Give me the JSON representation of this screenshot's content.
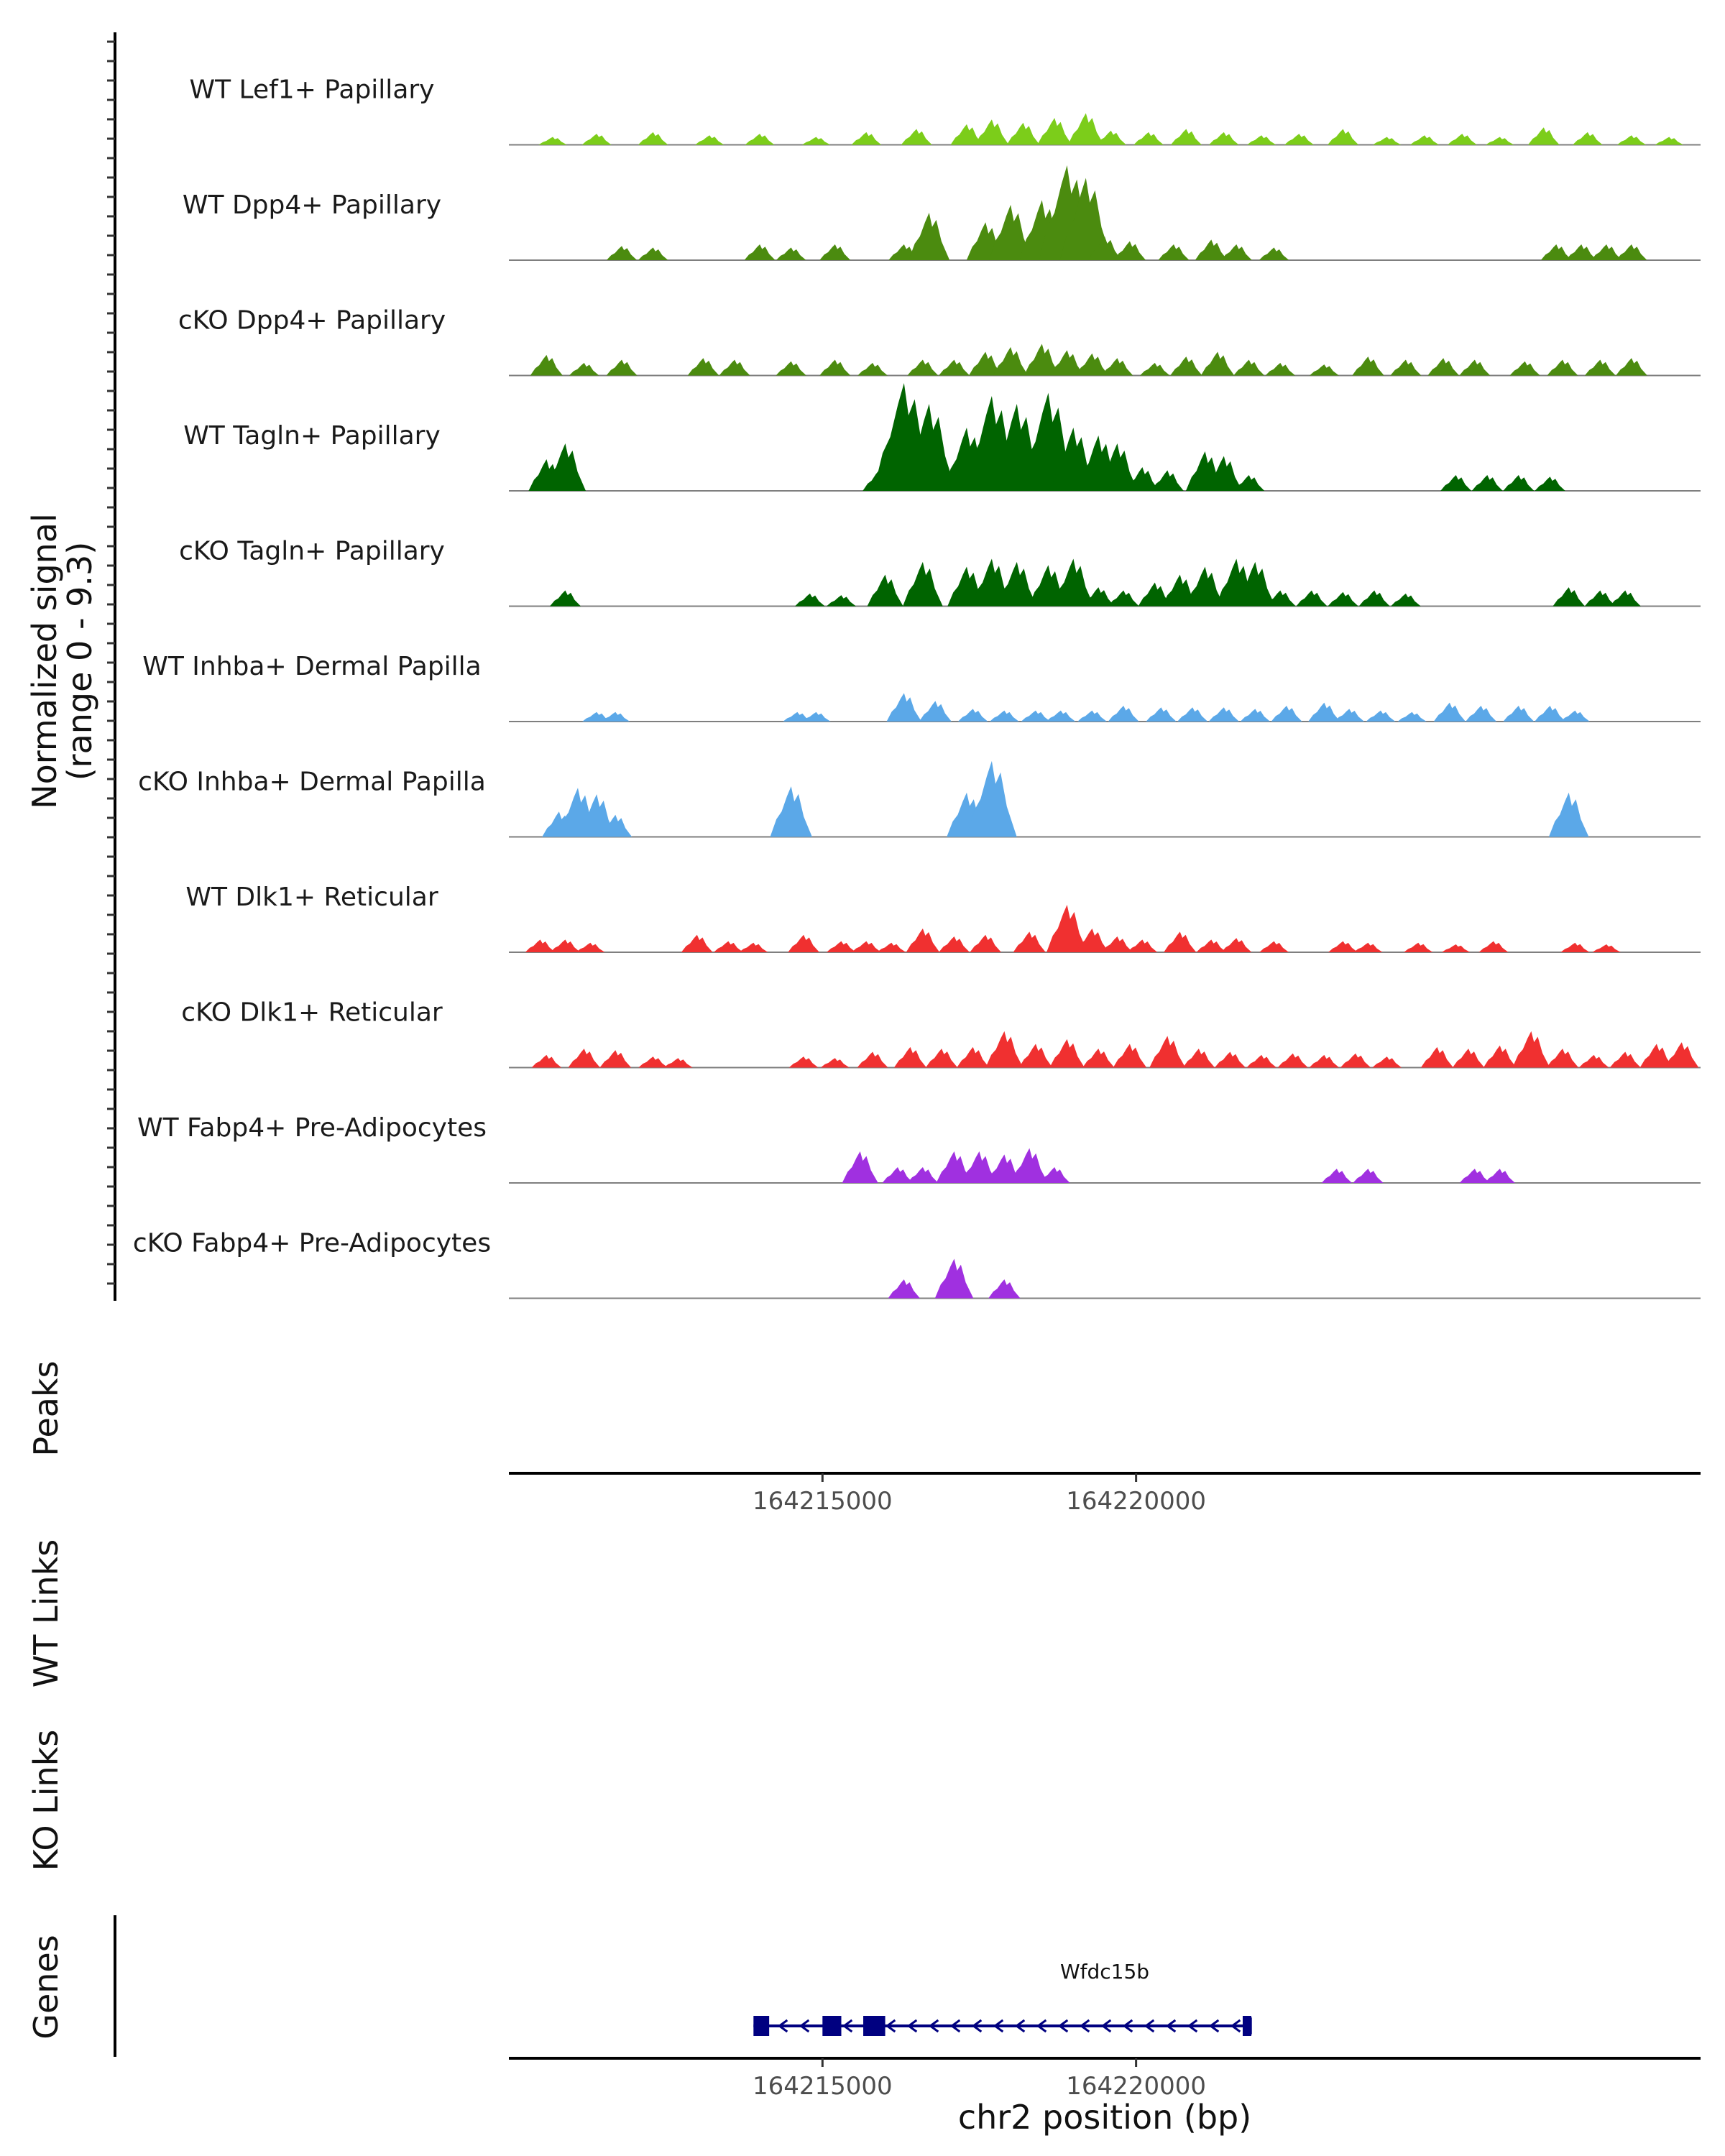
{
  "chart_data": {
    "type": "area",
    "description": "Genome coverage tracks",
    "ylabel_lines": [
      "Normalized signal",
      "(range 0 - 9.3)"
    ],
    "yrange": [
      0,
      9.3
    ],
    "xlabel": "chr2 position (bp)",
    "xlim": [
      164210000,
      164229000
    ],
    "xticks": [
      164215000,
      164220000
    ],
    "xtick_labels": [
      "164215000",
      "164220000"
    ],
    "panel_labels": {
      "peaks": "Peaks",
      "wt_links": "WT Links",
      "ko_links": "KO Links",
      "genes": "Genes"
    },
    "tracks": [
      {
        "name": "WT Lef1+ Papillary",
        "color": "#7CCD1A",
        "peaks": [
          [
            164210700,
            0.5
          ],
          [
            164211400,
            0.7
          ],
          [
            164212300,
            0.8
          ],
          [
            164213200,
            0.6
          ],
          [
            164214000,
            0.7
          ],
          [
            164214900,
            0.5
          ],
          [
            164215700,
            0.8
          ],
          [
            164216500,
            1.0
          ],
          [
            164217300,
            1.3
          ],
          [
            164217700,
            1.6
          ],
          [
            164218200,
            1.4
          ],
          [
            164218700,
            1.7
          ],
          [
            164219200,
            2.0
          ],
          [
            164219600,
            0.9
          ],
          [
            164220200,
            0.8
          ],
          [
            164220800,
            1.0
          ],
          [
            164221400,
            0.8
          ],
          [
            164222000,
            0.6
          ],
          [
            164222600,
            0.7
          ],
          [
            164223300,
            1.0
          ],
          [
            164224000,
            0.5
          ],
          [
            164224600,
            0.6
          ],
          [
            164225200,
            0.7
          ],
          [
            164225800,
            0.5
          ],
          [
            164226500,
            1.1
          ],
          [
            164227200,
            0.8
          ],
          [
            164227900,
            0.6
          ],
          [
            164228500,
            0.5
          ]
        ]
      },
      {
        "name": "WT Dpp4+ Papillary",
        "color": "#4B8B0F",
        "peaks": [
          [
            164211800,
            0.9
          ],
          [
            164212300,
            0.8
          ],
          [
            164214000,
            1.0
          ],
          [
            164214500,
            0.8
          ],
          [
            164215200,
            1.0
          ],
          [
            164216300,
            1.0
          ],
          [
            164216700,
            3.0
          ],
          [
            164217600,
            2.4
          ],
          [
            164218000,
            3.5
          ],
          [
            164218500,
            3.8
          ],
          [
            164218900,
            6.0
          ],
          [
            164219200,
            5.2
          ],
          [
            164219500,
            1.5
          ],
          [
            164219900,
            1.2
          ],
          [
            164220600,
            1.0
          ],
          [
            164221200,
            1.3
          ],
          [
            164221600,
            1.0
          ],
          [
            164222200,
            0.8
          ],
          [
            164226700,
            1.0
          ],
          [
            164227100,
            1.0
          ],
          [
            164227500,
            1.0
          ],
          [
            164227900,
            1.0
          ]
        ]
      },
      {
        "name": "cKO Dpp4+ Papillary",
        "color": "#4B8B0F",
        "peaks": [
          [
            164210600,
            1.3
          ],
          [
            164211200,
            0.8
          ],
          [
            164211800,
            1.0
          ],
          [
            164213100,
            1.1
          ],
          [
            164213600,
            1.0
          ],
          [
            164214500,
            0.9
          ],
          [
            164215200,
            1.0
          ],
          [
            164215800,
            0.8
          ],
          [
            164216600,
            1.0
          ],
          [
            164217100,
            1.0
          ],
          [
            164217600,
            1.5
          ],
          [
            164218000,
            1.8
          ],
          [
            164218500,
            2.0
          ],
          [
            164218900,
            1.6
          ],
          [
            164219300,
            1.4
          ],
          [
            164219700,
            1.1
          ],
          [
            164220300,
            0.8
          ],
          [
            164220800,
            1.2
          ],
          [
            164221300,
            1.5
          ],
          [
            164221800,
            1.0
          ],
          [
            164222300,
            0.8
          ],
          [
            164223000,
            0.7
          ],
          [
            164223700,
            1.2
          ],
          [
            164224300,
            1.0
          ],
          [
            164224900,
            1.1
          ],
          [
            164225400,
            1.0
          ],
          [
            164226200,
            0.9
          ],
          [
            164226800,
            1.0
          ],
          [
            164227400,
            1.0
          ],
          [
            164227900,
            1.1
          ]
        ]
      },
      {
        "name": "WT Tagln+ Papillary",
        "color": "#006400",
        "peaks": [
          [
            164210600,
            2.0
          ],
          [
            164210900,
            3.0
          ],
          [
            164215900,
            1.3
          ],
          [
            164216300,
            7.0
          ],
          [
            164216700,
            5.5
          ],
          [
            164217300,
            4.0
          ],
          [
            164217700,
            6.0
          ],
          [
            164218100,
            5.5
          ],
          [
            164218600,
            6.2
          ],
          [
            164219000,
            4.0
          ],
          [
            164219400,
            3.5
          ],
          [
            164219700,
            3.0
          ],
          [
            164220100,
            1.5
          ],
          [
            164220500,
            1.3
          ],
          [
            164221100,
            2.5
          ],
          [
            164221400,
            2.2
          ],
          [
            164221800,
            1.0
          ],
          [
            164225100,
            1.0
          ],
          [
            164225600,
            1.0
          ],
          [
            164226100,
            1.0
          ],
          [
            164226600,
            0.9
          ]
        ]
      },
      {
        "name": "cKO Tagln+ Papillary",
        "color": "#006400",
        "peaks": [
          [
            164210900,
            1.0
          ],
          [
            164214800,
            0.8
          ],
          [
            164215300,
            0.7
          ],
          [
            164216000,
            2.0
          ],
          [
            164216600,
            2.8
          ],
          [
            164217300,
            2.5
          ],
          [
            164217700,
            3.0
          ],
          [
            164218100,
            2.8
          ],
          [
            164218600,
            2.6
          ],
          [
            164219000,
            3.0
          ],
          [
            164219400,
            1.2
          ],
          [
            164219800,
            1.0
          ],
          [
            164220300,
            1.5
          ],
          [
            164220700,
            2.0
          ],
          [
            164221100,
            2.5
          ],
          [
            164221600,
            3.0
          ],
          [
            164221900,
            2.8
          ],
          [
            164222300,
            1.0
          ],
          [
            164222800,
            1.0
          ],
          [
            164223300,
            0.9
          ],
          [
            164223800,
            1.0
          ],
          [
            164224300,
            0.8
          ],
          [
            164226900,
            1.2
          ],
          [
            164227400,
            1.0
          ],
          [
            164227800,
            1.0
          ]
        ]
      },
      {
        "name": "WT Inhba+ Dermal Papilla",
        "color": "#5BA8E8",
        "peaks": [
          [
            164211400,
            0.6
          ],
          [
            164211700,
            0.6
          ],
          [
            164214600,
            0.6
          ],
          [
            164214900,
            0.6
          ],
          [
            164216300,
            1.8
          ],
          [
            164216800,
            1.3
          ],
          [
            164217400,
            0.8
          ],
          [
            164217900,
            0.7
          ],
          [
            164218400,
            0.7
          ],
          [
            164218800,
            0.7
          ],
          [
            164219300,
            0.7
          ],
          [
            164219800,
            1.0
          ],
          [
            164220400,
            0.9
          ],
          [
            164220900,
            0.9
          ],
          [
            164221400,
            0.9
          ],
          [
            164221900,
            0.8
          ],
          [
            164222400,
            1.0
          ],
          [
            164223000,
            1.2
          ],
          [
            164223400,
            0.8
          ],
          [
            164223900,
            0.7
          ],
          [
            164224400,
            0.6
          ],
          [
            164225000,
            1.2
          ],
          [
            164225500,
            1.0
          ],
          [
            164226100,
            1.0
          ],
          [
            164226600,
            1.0
          ],
          [
            164227000,
            0.7
          ]
        ]
      },
      {
        "name": "cKO Inhba+ Dermal Papilla",
        "color": "#5BA8E8",
        "peaks": [
          [
            164210800,
            1.6
          ],
          [
            164211100,
            3.1
          ],
          [
            164211400,
            2.7
          ],
          [
            164211700,
            1.4
          ],
          [
            164214500,
            3.2
          ],
          [
            164217300,
            2.8
          ],
          [
            164217700,
            4.8
          ],
          [
            164226900,
            2.8
          ]
        ]
      },
      {
        "name": "WT Dlk1+ Reticular",
        "color": "#F03030",
        "peaks": [
          [
            164210500,
            0.8
          ],
          [
            164210900,
            0.8
          ],
          [
            164211300,
            0.6
          ],
          [
            164213000,
            1.1
          ],
          [
            164213500,
            0.7
          ],
          [
            164213900,
            0.6
          ],
          [
            164214700,
            1.1
          ],
          [
            164215300,
            0.7
          ],
          [
            164215700,
            0.7
          ],
          [
            164216100,
            0.6
          ],
          [
            164216600,
            1.5
          ],
          [
            164217100,
            1.0
          ],
          [
            164217600,
            1.1
          ],
          [
            164218300,
            1.3
          ],
          [
            164218900,
            3.0
          ],
          [
            164219300,
            1.5
          ],
          [
            164219700,
            1.0
          ],
          [
            164220100,
            0.8
          ],
          [
            164220700,
            1.3
          ],
          [
            164221200,
            0.8
          ],
          [
            164221600,
            0.9
          ],
          [
            164222200,
            0.7
          ],
          [
            164223300,
            0.7
          ],
          [
            164223700,
            0.6
          ],
          [
            164224500,
            0.6
          ],
          [
            164225100,
            0.5
          ],
          [
            164225700,
            0.7
          ],
          [
            164227000,
            0.6
          ],
          [
            164227500,
            0.5
          ]
        ]
      },
      {
        "name": "cKO Dlk1+ Reticular",
        "color": "#F03030",
        "peaks": [
          [
            164210600,
            0.8
          ],
          [
            164211200,
            1.2
          ],
          [
            164211700,
            1.1
          ],
          [
            164212300,
            0.7
          ],
          [
            164212700,
            0.6
          ],
          [
            164214700,
            0.7
          ],
          [
            164215200,
            0.6
          ],
          [
            164215800,
            1.0
          ],
          [
            164216400,
            1.3
          ],
          [
            164216900,
            1.2
          ],
          [
            164217400,
            1.3
          ],
          [
            164217900,
            2.3
          ],
          [
            164218400,
            1.5
          ],
          [
            164218900,
            1.8
          ],
          [
            164219400,
            1.2
          ],
          [
            164219900,
            1.5
          ],
          [
            164220500,
            2.0
          ],
          [
            164221000,
            1.2
          ],
          [
            164221500,
            1.0
          ],
          [
            164222000,
            0.8
          ],
          [
            164222500,
            0.9
          ],
          [
            164223000,
            0.8
          ],
          [
            164223500,
            0.9
          ],
          [
            164224000,
            0.7
          ],
          [
            164224800,
            1.3
          ],
          [
            164225300,
            1.2
          ],
          [
            164225800,
            1.4
          ],
          [
            164226300,
            2.3
          ],
          [
            164226800,
            1.2
          ],
          [
            164227300,
            0.8
          ],
          [
            164227800,
            1.0
          ],
          [
            164228300,
            1.5
          ],
          [
            164228700,
            1.6
          ]
        ]
      },
      {
        "name": "WT Fabp4+ Pre-Adipocytes",
        "color": "#A030E0",
        "peaks": [
          [
            164215600,
            2.0
          ],
          [
            164216200,
            1.0
          ],
          [
            164216600,
            1.0
          ],
          [
            164217100,
            2.0
          ],
          [
            164217500,
            2.0
          ],
          [
            164217900,
            1.8
          ],
          [
            164218300,
            2.2
          ],
          [
            164218700,
            1.0
          ],
          [
            164223200,
            0.9
          ],
          [
            164223700,
            0.9
          ],
          [
            164225400,
            0.9
          ],
          [
            164225800,
            0.9
          ]
        ]
      },
      {
        "name": "cKO Fabp4+ Pre-Adipocytes",
        "color": "#A030E0",
        "peaks": [
          [
            164216300,
            1.2
          ],
          [
            164217100,
            2.5
          ],
          [
            164217900,
            1.2
          ]
        ]
      }
    ],
    "gene": {
      "name": "Wfdc15b",
      "strand": "-",
      "start": 164213900,
      "end": 164221800,
      "exons": [
        [
          164213900,
          164214150
        ],
        [
          164215000,
          164215300
        ],
        [
          164215650,
          164216000
        ],
        [
          164221700,
          164221800
        ]
      ],
      "color": "#000080"
    }
  }
}
